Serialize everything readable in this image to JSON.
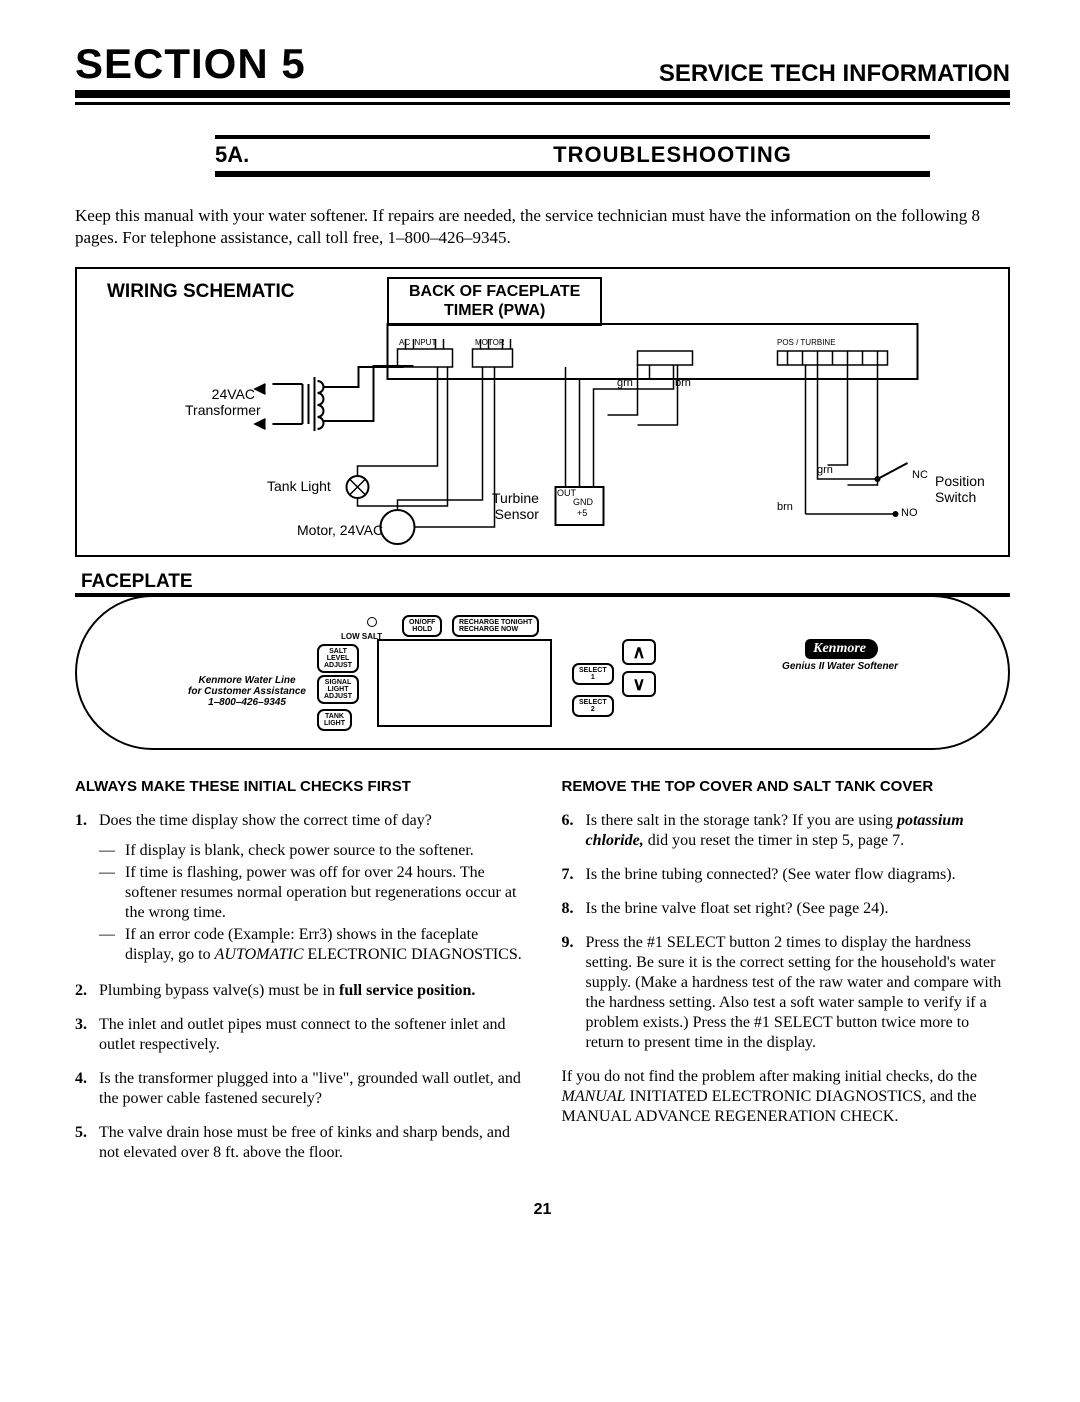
{
  "header": {
    "section": "SECTION 5",
    "service": "SERVICE TECH INFORMATION"
  },
  "subheader": {
    "num": "5A.",
    "title": "TROUBLESHOOTING"
  },
  "intro": "Keep this manual with your water softener. If repairs are needed, the service technician must have the information on the following 8 pages. For telephone assistance, call toll free, 1–800–426–9345.",
  "schematic": {
    "title": "WIRING SCHEMATIC",
    "back_box_l1": "BACK OF FACEPLATE",
    "back_box_l2": "TIMER (PWA)",
    "labels": {
      "transformer_l1": "24VAC",
      "transformer_l2": "Transformer",
      "tank_light": "Tank Light",
      "motor": "Motor, 24VAC",
      "turbine_l1": "Turbine",
      "turbine_l2": "Sensor",
      "position_l1": "Position",
      "position_l2": "Switch",
      "nc": "NC",
      "no": "NO",
      "grn1": "grn",
      "brn1": "brn",
      "grn2": "grn",
      "brn2": "brn",
      "acinput": "AC INPUT",
      "motor_pin": "MOTOR",
      "pos": "POS / TURBINE",
      "out": "OUT",
      "gnd": "GND",
      "plus5": "+5"
    }
  },
  "faceplate": {
    "title": "FACEPLATE",
    "brand": "Kenmore",
    "subtitle": "Genius II Water Softener",
    "assist_l1": "Kenmore Water Line",
    "assist_l2": "for Customer Assistance",
    "assist_l3": "1–800–426–9345",
    "low_salt": "LOW SALT",
    "btns": {
      "salt": "SALT\nLEVEL\nADJUST",
      "signal": "SIGNAL\nLIGHT\nADJUST",
      "tank": "TANK\nLIGHT",
      "onoff": "ON/OFF\nHOLD",
      "recharge": "RECHARGE TONIGHT\nRECHARGE NOW",
      "select1": "SELECT\n1",
      "select2": "SELECT\n2",
      "up": "∧",
      "down": "∨"
    }
  },
  "left_head": "ALWAYS MAKE THESE INITIAL CHECKS FIRST",
  "right_head": "REMOVE THE TOP COVER AND SALT TANK COVER",
  "checks": {
    "c1": "Does the time display show the correct time of day?",
    "c1a": "If display is blank, check power source to the softener.",
    "c1b": "If time is flashing, power was off for over 24 hours. The softener resumes normal operation but regenerations occur at the wrong time.",
    "c1c_pre": "If an error code (Example: Err3) shows in the faceplate display, go to ",
    "c1c_it": "AUTOMATIC",
    "c1c_post": " ELECTRONIC DIAGNOSTICS.",
    "c2_pre": "Plumbing bypass valve(s) must be in ",
    "c2_bold": "full service position.",
    "c3": "The inlet and outlet pipes must connect to the softener inlet and outlet respectively.",
    "c4": "Is the transformer plugged into a \"live\", grounded wall outlet, and the power cable fastened securely?",
    "c5": "The valve drain hose must be free of kinks and sharp bends, and not elevated over 8 ft. above the floor.",
    "c6_pre": "Is there salt in the storage tank? If you are using ",
    "c6_it": "potassium chloride,",
    "c6_post": " did you reset the timer in step 5, page 7.",
    "c7": "Is the brine tubing connected? (See water flow diagrams).",
    "c8": "Is the brine valve float set right? (See page 24).",
    "c9": "Press the #1 SELECT button 2 times to display the hardness setting. Be sure it is the correct setting for the household's water supply. (Make a hardness test of the raw water and compare with the hardness setting. Also test a soft water sample to verify if a problem exists.) Press the #1 SELECT button twice more to return to present time in the display."
  },
  "closing_pre": "If you do not find the problem after making initial checks, do the ",
  "closing_it": "MANUAL",
  "closing_post": " INITIATED ELECTRONIC DIAGNOSTICS, and the MANUAL ADVANCE REGENERATION CHECK.",
  "page": "21",
  "colors": {
    "text": "#000000",
    "bg": "#ffffff"
  },
  "fonts": {
    "body": "Times New Roman",
    "heading": "Arial"
  }
}
